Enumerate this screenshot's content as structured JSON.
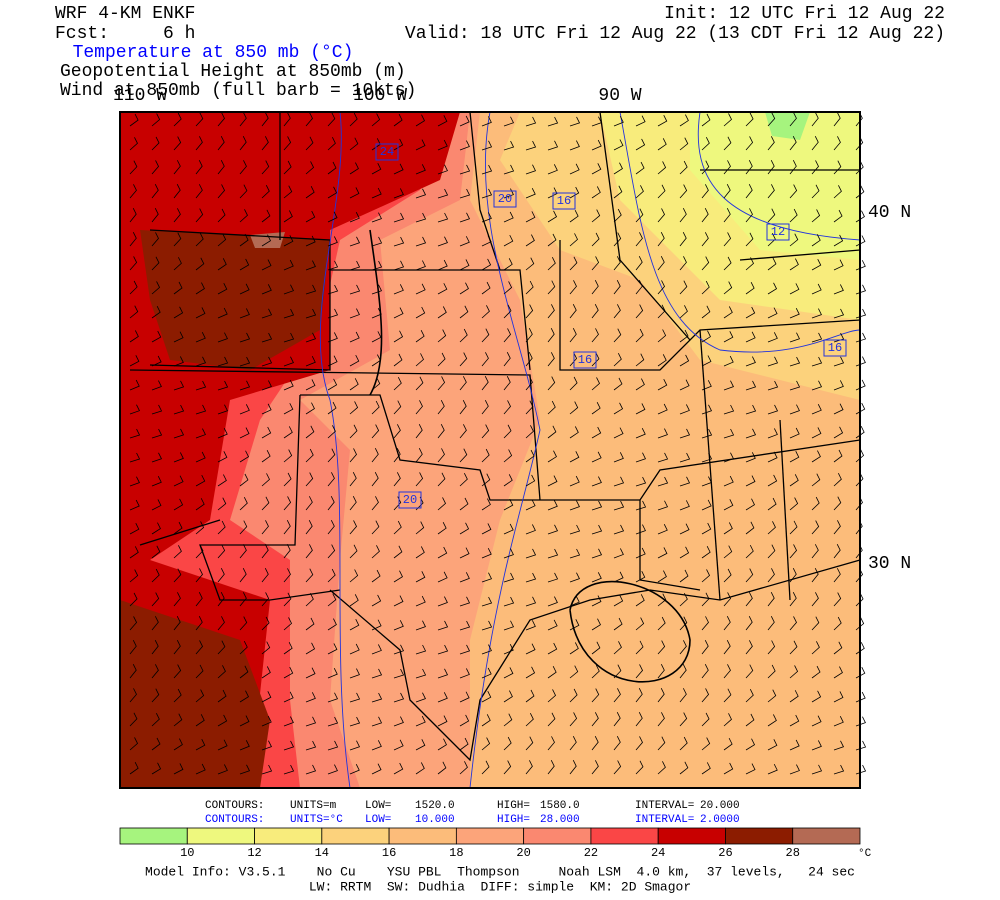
{
  "header": {
    "model": "WRF 4-KM ENKF",
    "forecast": "Fcst:     6 h",
    "init": "Init: 12 UTC Fri 12 Aug 22",
    "valid": "Valid: 18 UTC Fri 12 Aug 22 (13 CDT Fri 12 Aug 22)",
    "fields": [
      "Temperature at 850 mb (°C)",
      "Geopotential Height at 850mb (m)",
      "Wind at 850mb (full barb = 10kts)"
    ]
  },
  "map": {
    "longitude_labels": [
      "110 W",
      "100 W",
      "90 W"
    ],
    "latitude_labels": [
      "40 N",
      "30 N"
    ],
    "contour_labels": [
      "24",
      "20",
      "16",
      "12",
      "16",
      "16",
      "20"
    ]
  },
  "contours": [
    {
      "label": "CONTOURS:",
      "units": "UNITS=m",
      "low_label": "LOW=",
      "low": "1520.0",
      "high_label": "HIGH=",
      "high": "1580.0",
      "interval_label": "INTERVAL=",
      "interval": "20.000",
      "color": "#000000"
    },
    {
      "label": "CONTOURS:",
      "units": "UNITS=°C",
      "low_label": "LOW=",
      "low": "10.000",
      "high_label": "HIGH=",
      "high": "28.000",
      "interval_label": "INTERVAL=",
      "interval": "2.0000",
      "color": "#0000ff"
    }
  ],
  "colorbar": {
    "colors": [
      "#a6f47e",
      "#eef87e",
      "#f8ec7c",
      "#fcd27c",
      "#fcbc7a",
      "#fca47a",
      "#fa8870",
      "#fa4646",
      "#c80000",
      "#8c1c00",
      "#b46a54"
    ],
    "ticks": [
      10,
      12,
      14,
      16,
      18,
      20,
      22,
      24,
      26,
      28
    ],
    "unit": "°C"
  },
  "footer": [
    "Model Info: V3.5.1    No Cu    YSU PBL  Thompson     Noah LSM  4.0 km,  37 levels,   24 sec",
    "LW: RRTM  SW: Dudhia  DIFF: simple  KM: 2D Smagor"
  ]
}
